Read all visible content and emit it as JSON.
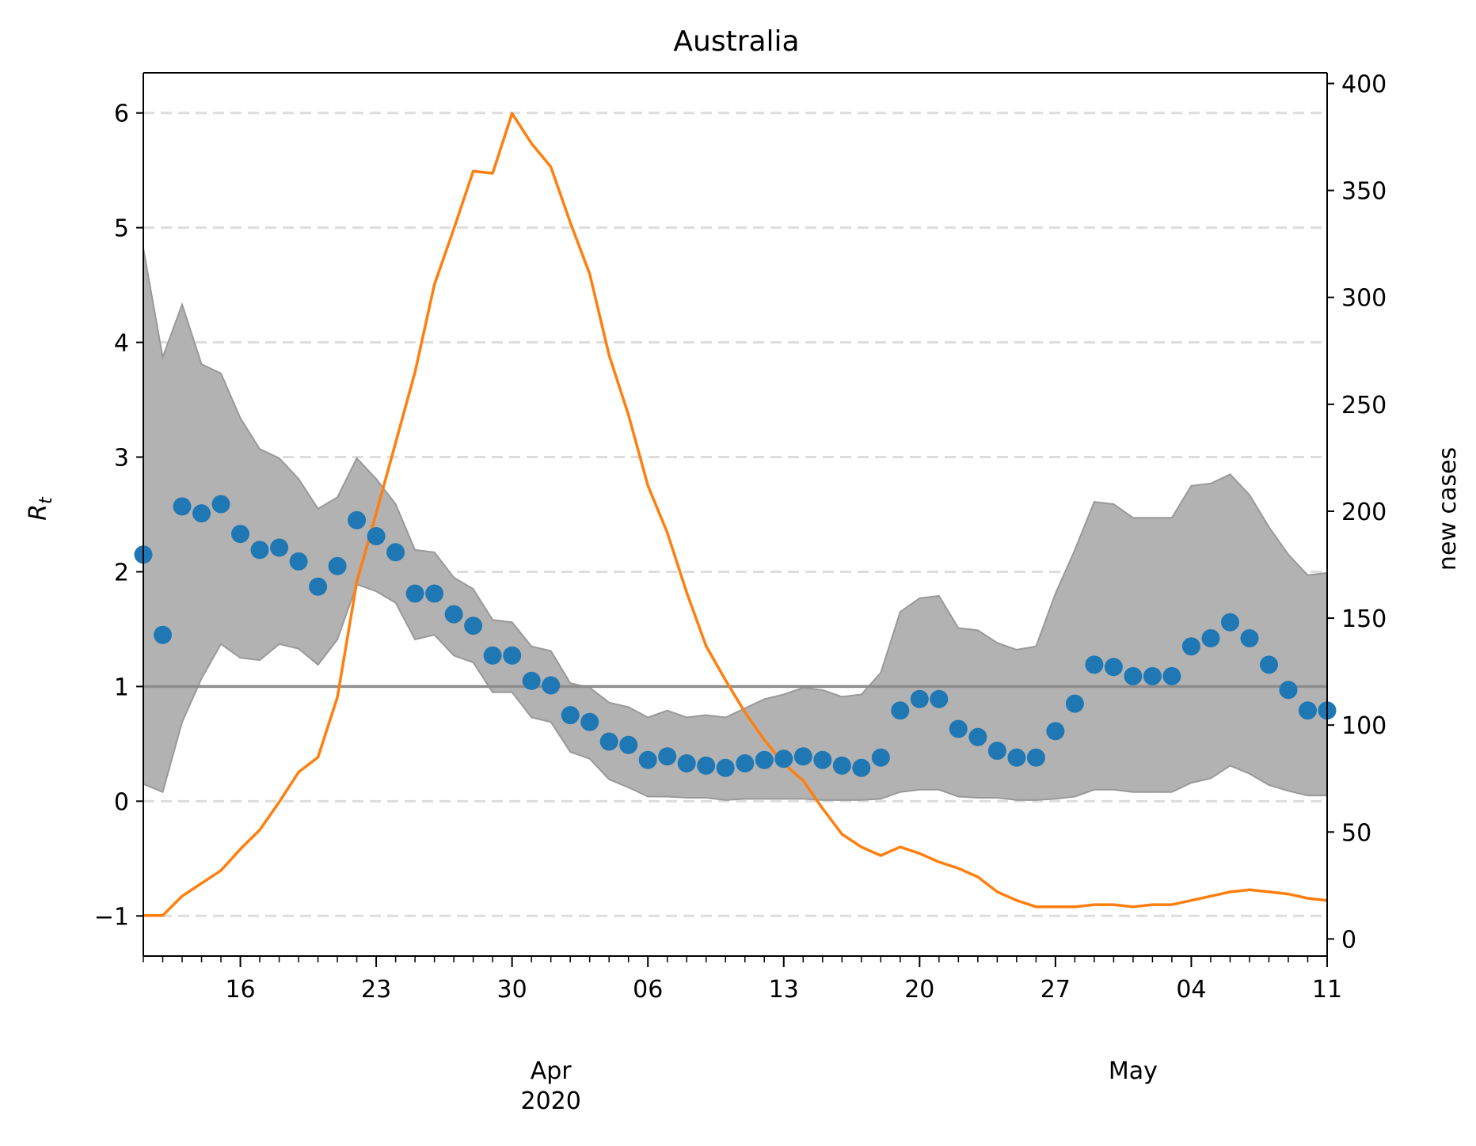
{
  "chart_data": {
    "type": "line",
    "title": "Australia",
    "ylabel_left": "R_t",
    "ylabel_right": "new cases",
    "start_date": "2020-03-11",
    "x_ticks": [
      {
        "date": "2020-03-16",
        "label": "16"
      },
      {
        "date": "2020-03-23",
        "label": "23"
      },
      {
        "date": "2020-03-30",
        "label": "30"
      },
      {
        "date": "2020-04-06",
        "label": "06"
      },
      {
        "date": "2020-04-13",
        "label": "13"
      },
      {
        "date": "2020-04-20",
        "label": "20"
      },
      {
        "date": "2020-04-27",
        "label": "27"
      },
      {
        "date": "2020-05-04",
        "label": "04"
      },
      {
        "date": "2020-05-11",
        "label": "11"
      }
    ],
    "x_month_labels": [
      {
        "date": "2020-04-01",
        "label": "Apr"
      },
      {
        "date": "2020-04-01",
        "label": "2020"
      },
      {
        "date": "2020-05-01",
        "label": "May"
      }
    ],
    "xlim": [
      "2020-03-11",
      "2020-05-11"
    ],
    "ylim_left": [
      -1.35,
      6.35
    ],
    "yticks_left": [
      -1,
      0,
      1,
      2,
      3,
      4,
      5,
      6
    ],
    "yticks_left_labels": [
      "−1",
      "0",
      "1",
      "2",
      "3",
      "4",
      "5",
      "6"
    ],
    "ylim_right": [
      -8,
      405
    ],
    "yticks_right": [
      0,
      50,
      100,
      150,
      200,
      250,
      300,
      350,
      400
    ],
    "yticks_right_labels": [
      "0",
      "50",
      "100",
      "150",
      "200",
      "250",
      "300",
      "350",
      "400"
    ],
    "reference_line": 1,
    "grid": "horizontal dashed",
    "colors": {
      "rt_points": "#1f77b4",
      "cases_line": "#ff7f0e",
      "band": "#b2b2b2",
      "band_edge": "#999999",
      "reference": "#8c8c8c",
      "grid": "#dddddd"
    },
    "series": [
      {
        "kind": "scatter",
        "axis": "left",
        "values": [
          2.15,
          1.45,
          2.57,
          2.51,
          2.59,
          2.33,
          2.19,
          2.21,
          2.09,
          1.87,
          2.05,
          2.45,
          2.31,
          2.17,
          1.81,
          1.81,
          1.63,
          1.53,
          1.27,
          1.27,
          1.05,
          1.01,
          0.75,
          0.69,
          0.52,
          0.49,
          0.36,
          0.39,
          0.33,
          0.31,
          0.29,
          0.33,
          0.36,
          0.37,
          0.39,
          0.36,
          0.31,
          0.29,
          0.38,
          0.79,
          0.89,
          0.89,
          0.63,
          0.56,
          0.44,
          0.38,
          0.38,
          0.61,
          0.85,
          1.19,
          1.17,
          1.09,
          1.09,
          1.09,
          1.35,
          1.42,
          1.56,
          1.42,
          1.19,
          0.97,
          0.79,
          0.79
        ]
      },
      {
        "kind": "band",
        "axis": "left",
        "upper": [
          4.82,
          3.87,
          4.33,
          3.81,
          3.73,
          3.34,
          3.07,
          2.99,
          2.81,
          2.55,
          2.65,
          2.99,
          2.81,
          2.59,
          2.19,
          2.17,
          1.95,
          1.85,
          1.58,
          1.56,
          1.35,
          1.31,
          1.03,
          0.99,
          0.86,
          0.82,
          0.73,
          0.79,
          0.73,
          0.75,
          0.73,
          0.81,
          0.89,
          0.93,
          0.99,
          0.97,
          0.91,
          0.93,
          1.12,
          1.65,
          1.77,
          1.79,
          1.51,
          1.49,
          1.38,
          1.32,
          1.35,
          1.81,
          2.19,
          2.61,
          2.59,
          2.47,
          2.47,
          2.47,
          2.75,
          2.77,
          2.85,
          2.67,
          2.39,
          2.15,
          1.97,
          1.99
        ]
      },
      {
        "kind": "band",
        "axis": "left",
        "lower": [
          0.15,
          0.08,
          0.69,
          1.07,
          1.37,
          1.25,
          1.23,
          1.37,
          1.33,
          1.19,
          1.41,
          1.89,
          1.83,
          1.73,
          1.41,
          1.45,
          1.27,
          1.21,
          0.95,
          0.95,
          0.73,
          0.69,
          0.43,
          0.37,
          0.19,
          0.12,
          0.04,
          0.04,
          0.03,
          0.03,
          0.01,
          0.02,
          0.02,
          0.02,
          0.02,
          0.01,
          0.01,
          0.01,
          0.02,
          0.08,
          0.1,
          0.1,
          0.04,
          0.03,
          0.03,
          0.01,
          0.01,
          0.02,
          0.04,
          0.1,
          0.1,
          0.08,
          0.08,
          0.08,
          0.16,
          0.2,
          0.31,
          0.24,
          0.14,
          0.09,
          0.05,
          0.05
        ]
      },
      {
        "kind": "line",
        "axis": "right",
        "values": [
          11,
          11,
          20,
          26,
          32,
          42,
          51,
          64,
          78,
          85,
          113,
          167,
          199,
          232,
          265,
          306,
          332,
          359,
          358,
          386,
          372,
          361,
          335,
          311,
          273,
          245,
          212,
          190,
          162,
          137,
          121,
          106,
          93,
          82,
          74,
          61,
          49,
          43,
          39,
          43,
          40,
          36,
          33,
          29,
          22,
          18,
          15,
          15,
          15,
          16,
          16,
          15,
          16,
          16,
          18,
          20,
          22,
          23,
          22,
          21,
          19,
          18
        ]
      }
    ]
  }
}
